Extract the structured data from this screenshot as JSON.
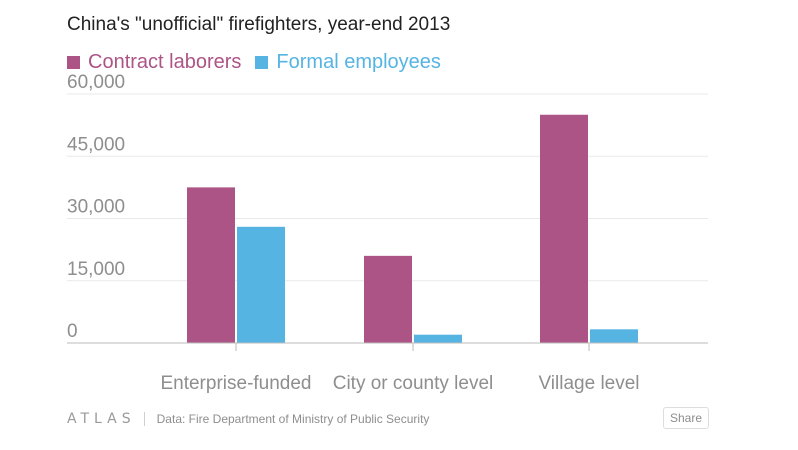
{
  "chart_data": {
    "type": "bar",
    "title": "China's \"unofficial\" firefighters, year-end 2013",
    "categories": [
      "Enterprise-funded",
      "City or county level",
      "Village level"
    ],
    "series": [
      {
        "name": "Contract laborers",
        "color": "#ad5487",
        "values": [
          37500,
          21000,
          55000
        ]
      },
      {
        "name": "Formal employees",
        "color": "#56b4e3",
        "values": [
          28000,
          2000,
          3300
        ]
      }
    ],
    "ylim": [
      0,
      60000
    ],
    "yticks": [
      {
        "value": 0,
        "label": "0"
      },
      {
        "value": 15000,
        "label": "15,000"
      },
      {
        "value": 30000,
        "label": "30,000"
      },
      {
        "value": 45000,
        "label": "45,000"
      },
      {
        "value": 60000,
        "label": "60,000"
      }
    ],
    "grid": true,
    "legend_position": "top-left"
  },
  "footer": {
    "logo": "ATLAS",
    "source": "Data: Fire Department of Ministry of Public Security",
    "share_label": "Share"
  },
  "colors": {
    "title": "#222222",
    "axis_text": "#8e8e8e",
    "gridline": "#e9e9e9",
    "baseline": "#bbbbbb"
  }
}
